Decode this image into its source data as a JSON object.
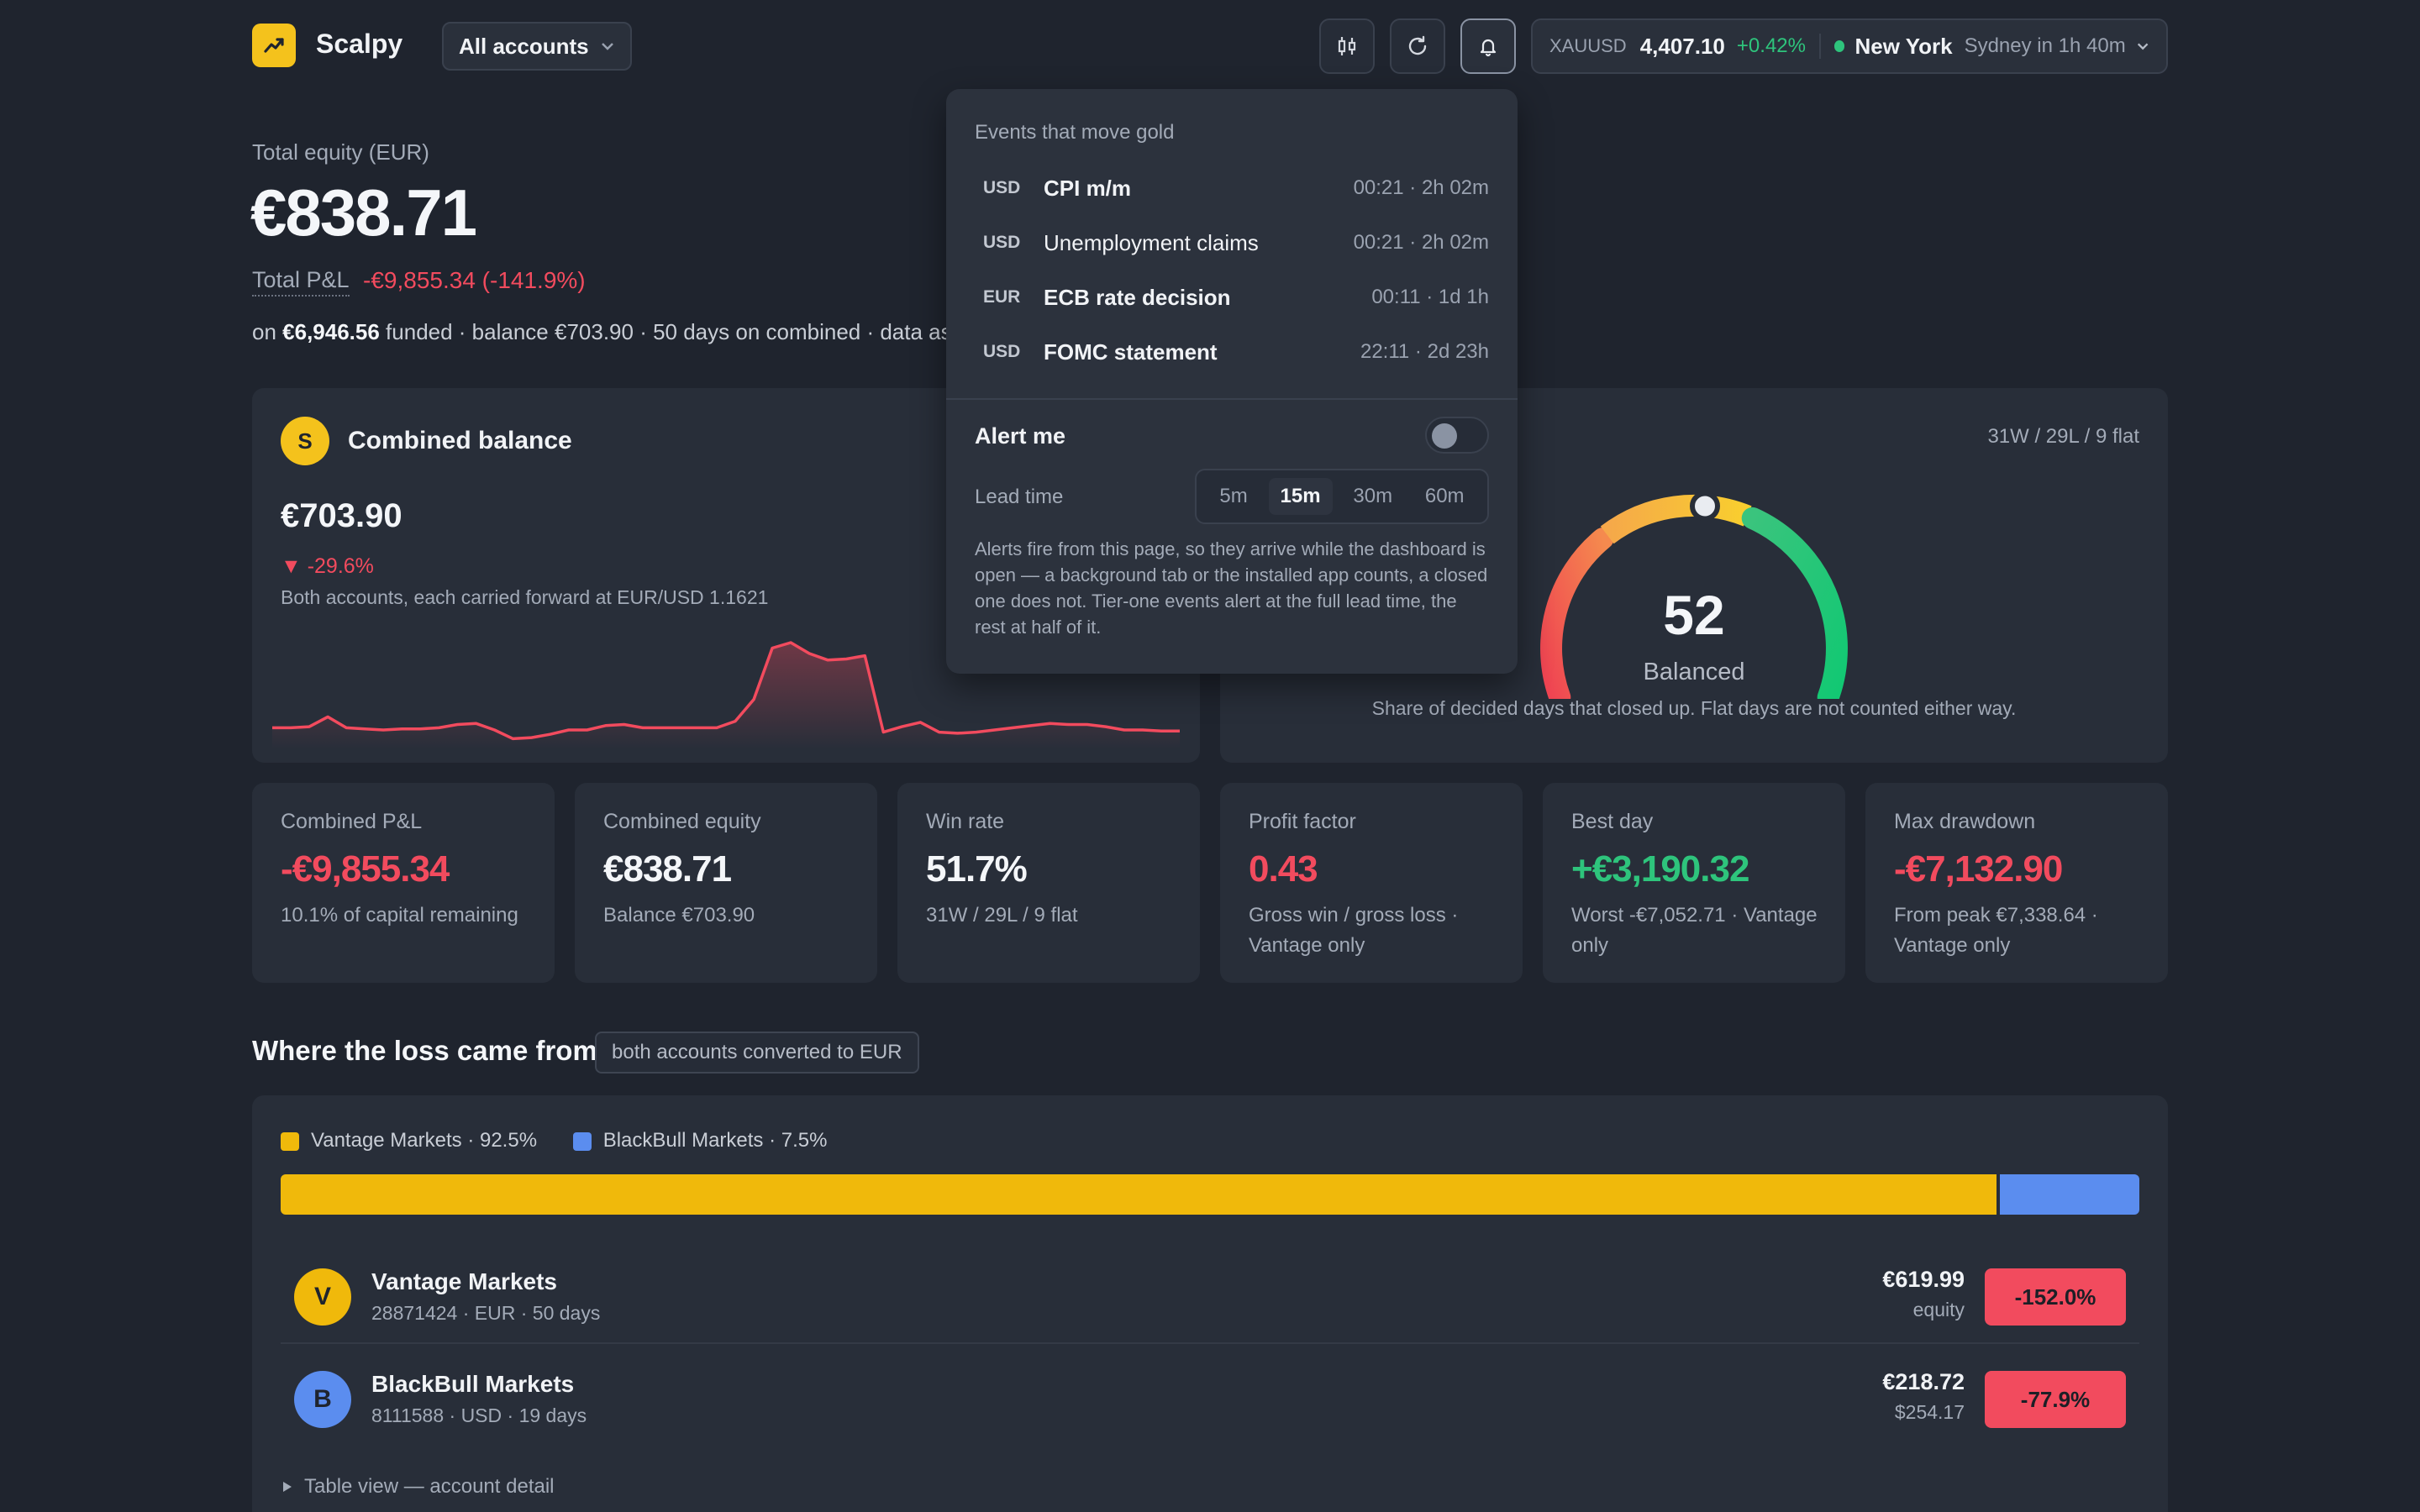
{
  "header": {
    "brand": "Scalpy",
    "account_select": "All accounts",
    "ticker": {
      "symbol": "XAUUSD",
      "price": "4,407.10",
      "change": "+0.42%",
      "session": "New York",
      "next_session": "Sydney in 1h 40m"
    }
  },
  "equity": {
    "label": "Total equity (EUR)",
    "value": "€838.71",
    "pnl_label": "Total P&L",
    "pnl_value": "-€9,855.34 (-141.9%)",
    "sub_prefix": "on ",
    "sub_funded": "€6,946.56",
    "sub_rest": " funded · balance €703.90 · 50 days on combined · data as"
  },
  "combined_balance": {
    "avatar": "S",
    "title": "Combined balance",
    "value": "€703.90",
    "change": "▼ -29.6%",
    "note": "Both accounts, each carried forward at EUR/USD 1.1621",
    "sparkline": [
      0.12,
      0.12,
      0.13,
      0.22,
      0.12,
      0.11,
      0.1,
      0.11,
      0.11,
      0.12,
      0.15,
      0.16,
      0.1,
      0.02,
      0.03,
      0.06,
      0.1,
      0.1,
      0.14,
      0.15,
      0.12,
      0.12,
      0.12,
      0.12,
      0.12,
      0.18,
      0.38,
      0.85,
      0.9,
      0.8,
      0.74,
      0.75,
      0.78,
      0.08,
      0.13,
      0.17,
      0.08,
      0.07,
      0.08,
      0.1,
      0.12,
      0.14,
      0.16,
      0.15,
      0.15,
      0.13,
      0.1,
      0.1,
      0.09,
      0.09
    ]
  },
  "win_score": {
    "record": "31W / 29L / 9 flat",
    "score": "52",
    "score_value": 52,
    "label": "Balanced",
    "note": "Share of decided days that closed up. Flat days are not counted either way."
  },
  "stats": [
    {
      "label": "Combined P&L",
      "value": "-€9,855.34",
      "sub": "10.1% of capital remaining",
      "color": "#f24b5e"
    },
    {
      "label": "Combined equity",
      "value": "€838.71",
      "sub": "Balance €703.90",
      "color": "#f4f6f9"
    },
    {
      "label": "Win rate",
      "value": "51.7%",
      "sub": "31W / 29L / 9 flat",
      "color": "#f4f6f9"
    },
    {
      "label": "Profit factor",
      "value": "0.43",
      "sub": "Gross win / gross loss · Vantage only",
      "color": "#f24b5e"
    },
    {
      "label": "Best day",
      "value": "+€3,190.32",
      "sub": "Worst -€7,052.71 · Vantage only",
      "color": "#2ec47c"
    },
    {
      "label": "Max drawdown",
      "value": "-€7,132.90",
      "sub": "From peak €7,338.64 · Vantage only",
      "color": "#f24b5e"
    }
  ],
  "loss": {
    "title": "Where the loss came from",
    "tag": "both accounts converted to EUR",
    "legend": [
      {
        "label": "Vantage Markets · 92.5%",
        "share": 92.5,
        "color": "#f0b90b"
      },
      {
        "label": "BlackBull Markets · 7.5%",
        "share": 7.5,
        "color": "#5b8def"
      }
    ],
    "accounts": [
      {
        "avatar": "V",
        "name": "Vantage Markets",
        "meta": "28871424 · EUR · 50 days",
        "amount": "€619.99",
        "amount_sub": "equity",
        "pct": "-152.0%",
        "color": "#f0b90b"
      },
      {
        "avatar": "B",
        "name": "BlackBull Markets",
        "meta": "8111588 · USD · 19 days",
        "amount": "€218.72",
        "amount_sub": "$254.17",
        "pct": "-77.9%",
        "color": "#5b8def"
      }
    ],
    "table_toggle": "Table view — account detail"
  },
  "popover": {
    "title": "Events that move gold",
    "events": [
      {
        "currency": "USD",
        "name": "CPI m/m",
        "time": "00:21 · 2h 02m",
        "bold": true
      },
      {
        "currency": "USD",
        "name": "Unemployment claims",
        "time": "00:21 · 2h 02m",
        "bold": false
      },
      {
        "currency": "EUR",
        "name": "ECB rate decision",
        "time": "00:11 · 1d 1h",
        "bold": true
      },
      {
        "currency": "USD",
        "name": "FOMC statement",
        "time": "22:11 · 2d 23h",
        "bold": true
      }
    ],
    "alert_label": "Alert me",
    "lead_label": "Lead time",
    "lead_options": [
      "5m",
      "15m",
      "30m",
      "60m"
    ],
    "lead_selected": "15m",
    "note": "Alerts fire from this page, so they arrive while the dashboard is open — a background tab or the installed app counts, a closed one does not. Tier-one events alert at the full lead time, the rest at half of it."
  }
}
